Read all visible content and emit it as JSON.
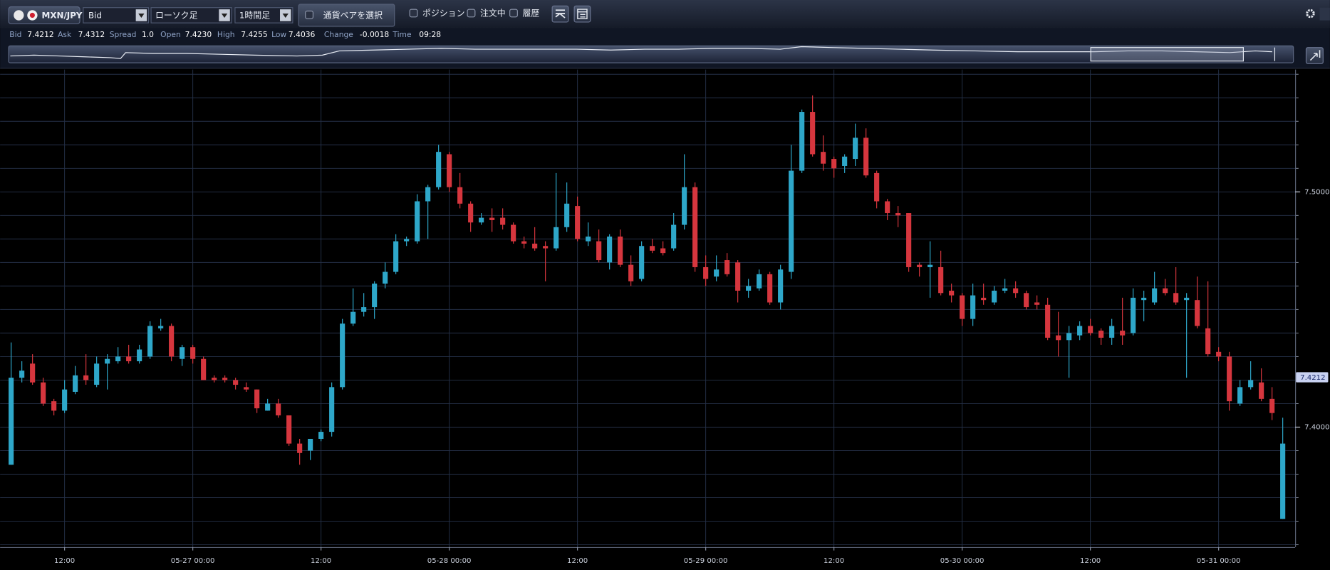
{
  "toolbar": {
    "pair": "MXN/JPY",
    "price_type": "Bid",
    "chart_style": "ローソク足",
    "timeframe": "1時間足",
    "select_pair": "通貨ペアを選択",
    "toggles": [
      "ポジション",
      "注文中",
      "履歴"
    ]
  },
  "quote": [
    {
      "label": "Bid",
      "value": "7.4212"
    },
    {
      "label": "Ask",
      "value": "7.4312"
    },
    {
      "label": "Spread",
      "value": "1.0"
    },
    {
      "label": "Open",
      "value": "7.4230"
    },
    {
      "label": "High",
      "value": "7.4255"
    },
    {
      "label": "Low",
      "value": "7.4036"
    },
    {
      "label": "Change",
      "value": "-0.0018"
    },
    {
      "label": "Time",
      "value": "09:28"
    }
  ],
  "chart_data": {
    "type": "candlestick",
    "x": [
      "05-26 07:00",
      "05-26 08:00",
      "05-26 09:00",
      "05-26 10:00",
      "05-26 11:00",
      "05-26 12:00",
      "05-26 13:00",
      "05-26 14:00",
      "05-26 15:00",
      "05-26 16:00",
      "05-26 17:00",
      "05-26 18:00",
      "05-26 19:00",
      "05-26 20:00",
      "05-26 21:00",
      "05-26 22:00",
      "05-26 23:00",
      "05-27 00:00",
      "05-27 01:00",
      "05-27 02:00",
      "05-27 03:00",
      "05-27 04:00",
      "05-27 05:00",
      "05-27 06:00",
      "05-27 07:00",
      "05-27 08:00",
      "05-27 09:00",
      "05-27 10:00",
      "05-27 11:00",
      "05-27 12:00",
      "05-27 13:00",
      "05-27 14:00",
      "05-27 15:00",
      "05-27 16:00",
      "05-27 17:00",
      "05-27 18:00",
      "05-27 19:00",
      "05-27 20:00",
      "05-27 21:00",
      "05-27 22:00",
      "05-27 23:00",
      "05-28 00:00",
      "05-28 01:00",
      "05-28 02:00",
      "05-28 03:00",
      "05-28 04:00",
      "05-28 05:00",
      "05-28 06:00",
      "05-28 07:00",
      "05-28 08:00",
      "05-28 09:00",
      "05-28 10:00",
      "05-28 11:00",
      "05-28 12:00",
      "05-28 13:00",
      "05-28 14:00",
      "05-28 15:00",
      "05-28 16:00",
      "05-28 17:00",
      "05-28 18:00",
      "05-28 19:00",
      "05-28 20:00",
      "05-28 21:00",
      "05-28 22:00",
      "05-28 23:00",
      "05-29 00:00",
      "05-29 01:00",
      "05-29 02:00",
      "05-29 03:00",
      "05-29 04:00",
      "05-29 05:00",
      "05-29 06:00",
      "05-29 07:00",
      "05-29 08:00",
      "05-29 09:00",
      "05-29 10:00",
      "05-29 11:00",
      "05-29 12:00",
      "05-29 13:00",
      "05-29 14:00",
      "05-29 15:00",
      "05-29 16:00",
      "05-29 17:00",
      "05-29 18:00",
      "05-29 19:00",
      "05-29 20:00",
      "05-29 21:00",
      "05-29 22:00",
      "05-29 23:00",
      "05-30 00:00",
      "05-30 01:00",
      "05-30 02:00",
      "05-30 03:00",
      "05-30 04:00",
      "05-30 05:00",
      "05-30 06:00",
      "05-30 07:00",
      "05-30 08:00",
      "05-30 09:00",
      "05-30 10:00",
      "05-30 11:00",
      "05-30 12:00",
      "05-30 13:00",
      "05-30 14:00",
      "05-30 15:00",
      "05-30 16:00",
      "05-30 17:00",
      "05-30 18:00",
      "05-30 19:00",
      "05-30 20:00",
      "05-30 21:00",
      "05-30 22:00",
      "05-30 23:00",
      "05-31 00:00",
      "05-31 01:00",
      "05-31 02:00",
      "05-31 03:00",
      "05-31 04:00",
      "05-31 05:00",
      "05-31 06:00"
    ],
    "open": [
      7.384,
      7.421,
      7.427,
      7.419,
      7.411,
      7.407,
      7.415,
      7.422,
      7.418,
      7.427,
      7.428,
      7.43,
      7.428,
      7.43,
      7.442,
      7.443,
      7.429,
      7.434,
      7.429,
      7.421,
      7.421,
      7.42,
      7.417,
      7.416,
      7.407,
      7.41,
      7.405,
      7.393,
      7.39,
      7.395,
      7.398,
      7.417,
      7.444,
      7.449,
      7.451,
      7.461,
      7.466,
      7.479,
      7.479,
      7.496,
      7.502,
      7.516,
      7.502,
      7.495,
      7.487,
      7.489,
      7.489,
      7.486,
      7.479,
      7.478,
      7.477,
      7.476,
      7.485,
      7.494,
      7.479,
      7.479,
      7.47,
      7.481,
      7.469,
      7.463,
      7.477,
      7.476,
      7.476,
      7.486,
      7.502,
      7.468,
      7.464,
      7.471,
      7.47,
      7.458,
      7.459,
      7.465,
      7.453,
      7.466,
      7.509,
      7.534,
      7.517,
      7.514,
      7.511,
      7.514,
      7.523,
      7.508,
      7.496,
      7.491,
      7.491,
      7.469,
      7.468,
      7.468,
      7.458,
      7.456,
      7.446,
      7.455,
      7.453,
      7.458,
      7.459,
      7.457,
      7.453,
      7.452,
      7.439,
      7.437,
      7.439,
      7.443,
      7.441,
      7.438,
      7.441,
      7.44,
      7.454,
      7.453,
      7.459,
      7.457,
      7.454,
      7.454,
      7.442,
      7.432,
      7.43,
      7.41,
      7.417,
      7.419,
      7.412,
      7.361
    ],
    "high": [
      7.436,
      7.428,
      7.431,
      7.421,
      7.412,
      7.42,
      7.426,
      7.431,
      7.43,
      7.431,
      7.434,
      7.435,
      7.435,
      7.445,
      7.446,
      7.444,
      7.435,
      7.435,
      7.43,
      7.422,
      7.422,
      7.421,
      7.419,
      7.416,
      7.412,
      7.412,
      7.405,
      7.395,
      7.395,
      7.399,
      7.419,
      7.446,
      7.459,
      7.457,
      7.462,
      7.47,
      7.482,
      7.481,
      7.499,
      7.503,
      7.52,
      7.517,
      7.508,
      7.496,
      7.491,
      7.493,
      7.493,
      7.487,
      7.481,
      7.485,
      7.479,
      7.508,
      7.504,
      7.498,
      7.487,
      7.484,
      7.482,
      7.484,
      7.473,
      7.479,
      7.48,
      7.479,
      7.491,
      7.516,
      7.504,
      7.473,
      7.473,
      7.474,
      7.471,
      7.463,
      7.467,
      7.466,
      7.469,
      7.52,
      7.535,
      7.541,
      7.524,
      7.515,
      7.516,
      7.529,
      7.527,
      7.509,
      7.497,
      7.494,
      7.491,
      7.47,
      7.479,
      7.475,
      7.461,
      7.457,
      7.461,
      7.461,
      7.46,
      7.463,
      7.462,
      7.458,
      7.456,
      7.455,
      7.449,
      7.443,
      7.445,
      7.446,
      7.442,
      7.446,
      7.455,
      7.459,
      7.458,
      7.466,
      7.463,
      7.468,
      7.457,
      7.464,
      7.462,
      7.434,
      7.432,
      7.42,
      7.428,
      7.425,
      7.417,
      7.404
    ],
    "low": [
      7.384,
      7.419,
      7.418,
      7.409,
      7.405,
      7.406,
      7.414,
      7.418,
      7.417,
      7.416,
      7.427,
      7.427,
      7.427,
      7.429,
      7.441,
      7.428,
      7.426,
      7.427,
      7.42,
      7.419,
      7.419,
      7.416,
      7.415,
      7.406,
      7.407,
      7.404,
      7.392,
      7.384,
      7.386,
      7.394,
      7.396,
      7.416,
      7.443,
      7.447,
      7.446,
      7.459,
      7.465,
      7.477,
      7.478,
      7.48,
      7.501,
      7.5,
      7.493,
      7.483,
      7.486,
      7.483,
      7.484,
      7.478,
      7.476,
      7.475,
      7.462,
      7.475,
      7.483,
      7.479,
      7.477,
      7.47,
      7.467,
      7.468,
      7.46,
      7.462,
      7.474,
      7.473,
      7.475,
      7.484,
      7.466,
      7.46,
      7.462,
      7.464,
      7.453,
      7.455,
      7.458,
      7.452,
      7.45,
      7.463,
      7.508,
      7.515,
      7.509,
      7.506,
      7.508,
      7.511,
      7.506,
      7.493,
      7.488,
      7.485,
      7.466,
      7.464,
      7.455,
      7.456,
      7.453,
      7.443,
      7.443,
      7.452,
      7.452,
      7.457,
      7.455,
      7.45,
      7.45,
      7.437,
      7.43,
      7.421,
      7.437,
      7.439,
      7.435,
      7.435,
      7.435,
      7.439,
      7.445,
      7.452,
      7.456,
      7.452,
      7.421,
      7.442,
      7.43,
      7.428,
      7.407,
      7.409,
      7.416,
      7.411,
      7.403,
      7.361
    ],
    "close": [
      7.421,
      7.424,
      7.419,
      7.41,
      7.407,
      7.416,
      7.422,
      7.42,
      7.427,
      7.429,
      7.43,
      7.428,
      7.433,
      7.443,
      7.443,
      7.43,
      7.434,
      7.429,
      7.42,
      7.42,
      7.42,
      7.418,
      7.416,
      7.408,
      7.41,
      7.405,
      7.393,
      7.389,
      7.395,
      7.398,
      7.417,
      7.444,
      7.449,
      7.451,
      7.461,
      7.466,
      7.479,
      7.48,
      7.496,
      7.502,
      7.517,
      7.502,
      7.495,
      7.487,
      7.489,
      7.488,
      7.486,
      7.479,
      7.478,
      7.476,
      7.476,
      7.485,
      7.495,
      7.48,
      7.481,
      7.471,
      7.481,
      7.469,
      7.462,
      7.477,
      7.475,
      7.474,
      7.486,
      7.502,
      7.468,
      7.463,
      7.467,
      7.465,
      7.458,
      7.46,
      7.465,
      7.453,
      7.467,
      7.509,
      7.534,
      7.516,
      7.512,
      7.51,
      7.515,
      7.523,
      7.507,
      7.496,
      7.491,
      7.49,
      7.468,
      7.468,
      7.469,
      7.457,
      7.456,
      7.446,
      7.456,
      7.454,
      7.458,
      7.459,
      7.457,
      7.451,
      7.452,
      7.438,
      7.437,
      7.44,
      7.443,
      7.44,
      7.438,
      7.443,
      7.439,
      7.455,
      7.455,
      7.459,
      7.457,
      7.453,
      7.455,
      7.443,
      7.431,
      7.43,
      7.411,
      7.417,
      7.42,
      7.412,
      7.406,
      7.393
    ],
    "up_color": "#2ea7c9",
    "down_color": "#d6363e",
    "ylim": [
      7.349,
      7.552
    ],
    "yticks": [
      {
        "value": 7.4,
        "label": "7.4000"
      },
      {
        "value": 7.5,
        "label": "7.5000"
      }
    ],
    "ygrid": [
      7.35,
      7.36,
      7.37,
      7.38,
      7.39,
      7.4,
      7.41,
      7.42,
      7.43,
      7.44,
      7.45,
      7.46,
      7.47,
      7.48,
      7.49,
      7.5,
      7.51,
      7.52,
      7.53,
      7.54,
      7.55
    ],
    "xticks": [
      {
        "value": "05-26 12:00",
        "label": "12:00"
      },
      {
        "value": "05-27 00:00",
        "label": "05-27 00:00"
      },
      {
        "value": "05-27 12:00",
        "label": "12:00"
      },
      {
        "value": "05-28 00:00",
        "label": "05-28 00:00"
      },
      {
        "value": "05-28 12:00",
        "label": "12:00"
      },
      {
        "value": "05-29 00:00",
        "label": "05-29 00:00"
      },
      {
        "value": "05-29 12:00",
        "label": "12:00"
      },
      {
        "value": "05-30 00:00",
        "label": "05-30 00:00"
      },
      {
        "value": "05-30 12:00",
        "label": "12:00"
      },
      {
        "value": "05-31 00:00",
        "label": "05-31 00:00"
      }
    ],
    "last_price": 7.4212,
    "grid": true
  }
}
